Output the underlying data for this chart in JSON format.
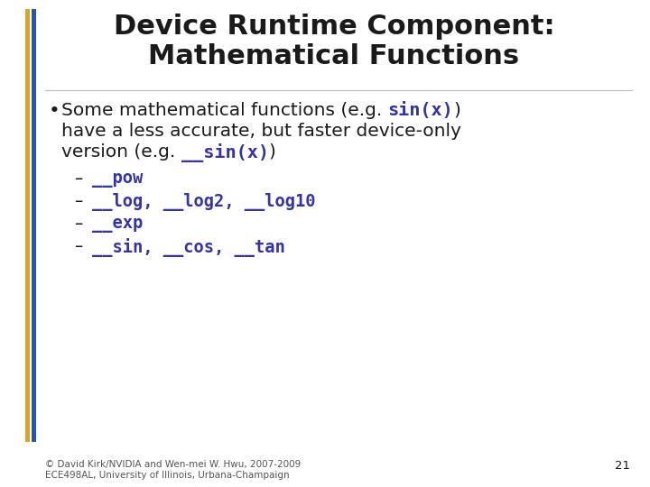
{
  "title_line1": "Device Runtime Component:",
  "title_line2": "Mathematical Functions",
  "title_color": "#1a1a1a",
  "title_fontsize": 22,
  "slide_bg": "#ffffff",
  "left_bar_color1": "#DAA520",
  "left_bar_color2": "#2255BB",
  "code_color": "#3333aa",
  "text_color": "#1a1a1a",
  "body_fontsize": 14.5,
  "sub_fontsize": 13.5,
  "footer_text1": "© David Kirk/NVIDIA and Wen-mei W. Hwu, 2007-2009",
  "footer_text2": "ECE498AL, University of Illinois, Urbana-Champaign",
  "footer_fontsize": 7.5,
  "page_number": "21"
}
